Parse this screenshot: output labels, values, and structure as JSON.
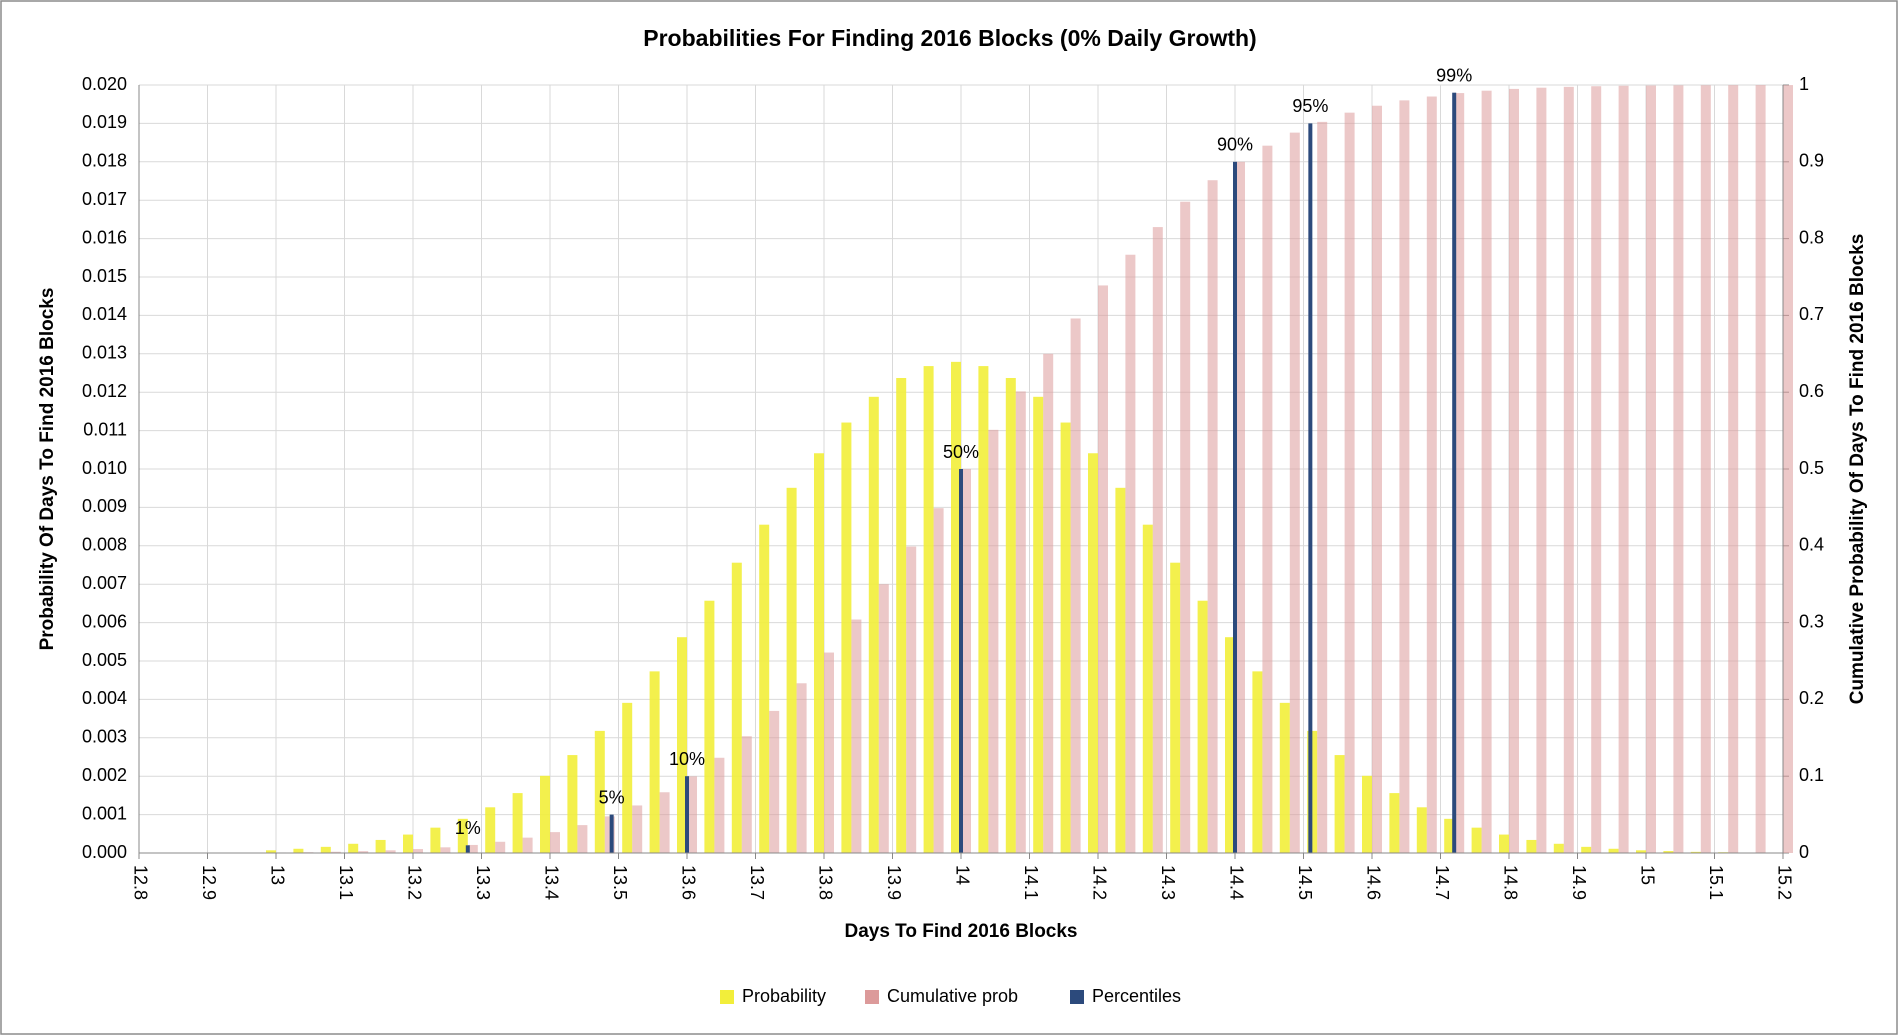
{
  "chart_data": {
    "type": "bar",
    "title": "Probabilities For Finding 2016 Blocks (0% Daily Growth)",
    "x_label": "Days To Find 2016 Blocks",
    "y_label": "Probability Of Days To Find 2016 Blocks",
    "y2_label": "Cumulative Probability Of Days To Find 2016 Blocks",
    "x": [
      13.0,
      13.04,
      13.08,
      13.12,
      13.16,
      13.2,
      13.24,
      13.28,
      13.32,
      13.36,
      13.4,
      13.44,
      13.48,
      13.52,
      13.56,
      13.6,
      13.64,
      13.68,
      13.72,
      13.76,
      13.8,
      13.84,
      13.88,
      13.92,
      13.96,
      14.0,
      14.04,
      14.08,
      14.12,
      14.16,
      14.2,
      14.24,
      14.28,
      14.32,
      14.36,
      14.4,
      14.44,
      14.48,
      14.52,
      14.56,
      14.6,
      14.64,
      14.68,
      14.72,
      14.76,
      14.8,
      14.84,
      14.88,
      14.92,
      14.96,
      15.0,
      15.04,
      15.08,
      15.12,
      15.16,
      15.2
    ],
    "series": [
      {
        "name": "Probability",
        "color": "#f2ee3a",
        "values": [
          7e-05,
          0.00011,
          0.00016,
          0.00024,
          0.00034,
          0.00048,
          0.00066,
          0.00089,
          0.00119,
          0.00156,
          0.00201,
          0.00255,
          0.00318,
          0.00391,
          0.00473,
          0.00562,
          0.00657,
          0.00756,
          0.00855,
          0.00951,
          0.01041,
          0.01121,
          0.01188,
          0.01237,
          0.01268,
          0.01279,
          0.01268,
          0.01237,
          0.01188,
          0.01121,
          0.01041,
          0.00951,
          0.00855,
          0.00756,
          0.00657,
          0.00562,
          0.00473,
          0.00391,
          0.00318,
          0.00255,
          0.00201,
          0.00156,
          0.00119,
          0.00089,
          0.00066,
          0.00048,
          0.00034,
          0.00024,
          0.00016,
          0.00011,
          7e-05,
          5e-05,
          3e-05,
          2e-05,
          1e-05,
          1e-05
        ]
      },
      {
        "name": "Cumulative prob",
        "color": "#dc9a9a",
        "axis": "y2",
        "values": [
          0.0007,
          0.001,
          0.0016,
          0.0024,
          0.0035,
          0.0051,
          0.0074,
          0.0105,
          0.0146,
          0.02,
          0.0272,
          0.0363,
          0.0477,
          0.0619,
          0.0791,
          0.0998,
          0.124,
          0.152,
          0.185,
          0.221,
          0.261,
          0.304,
          0.35,
          0.399,
          0.449,
          0.5,
          0.551,
          0.601,
          0.65,
          0.696,
          0.739,
          0.779,
          0.815,
          0.848,
          0.876,
          0.9,
          0.921,
          0.938,
          0.952,
          0.964,
          0.973,
          0.98,
          0.985,
          0.9895,
          0.9926,
          0.9949,
          0.9965,
          0.9976,
          0.9984,
          0.999,
          0.9993,
          0.9996,
          0.9997,
          0.9998,
          0.9999,
          0.9999
        ]
      },
      {
        "name": "Percentiles",
        "color": "#2c4a7c",
        "axis": "y2",
        "x": [
          13.28,
          13.49,
          13.6,
          14.0,
          14.4,
          14.51,
          14.72
        ],
        "values": [
          0.01,
          0.05,
          0.1,
          0.5,
          0.9,
          0.95,
          0.99
        ],
        "value_labels": [
          "1%",
          "5%",
          "10%",
          "50%",
          "90%",
          "95%",
          "99%"
        ]
      }
    ],
    "xlim": [
      12.8,
      15.2
    ],
    "xticks": [
      12.8,
      12.9,
      13,
      13.1,
      13.2,
      13.3,
      13.4,
      13.5,
      13.6,
      13.7,
      13.8,
      13.9,
      14,
      14.1,
      14.2,
      14.3,
      14.4,
      14.5,
      14.6,
      14.7,
      14.8,
      14.9,
      15,
      15.1,
      15.2
    ],
    "ylim": [
      0,
      0.02
    ],
    "yticks": [
      {
        "value": 0,
        "label": "0.000"
      },
      {
        "value": 0.001,
        "label": "0.001"
      },
      {
        "value": 0.002,
        "label": "0.002"
      },
      {
        "value": 0.003,
        "label": "0.003"
      },
      {
        "value": 0.004,
        "label": "0.004"
      },
      {
        "value": 0.005,
        "label": "0.005"
      },
      {
        "value": 0.006,
        "label": "0.006"
      },
      {
        "value": 0.007,
        "label": "0.007"
      },
      {
        "value": 0.008,
        "label": "0.008"
      },
      {
        "value": 0.009,
        "label": "0.009"
      },
      {
        "value": 0.01,
        "label": "0.010"
      },
      {
        "value": 0.011,
        "label": "0.011"
      },
      {
        "value": 0.012,
        "label": "0.012"
      },
      {
        "value": 0.013,
        "label": "0.013"
      },
      {
        "value": 0.014,
        "label": "0.014"
      },
      {
        "value": 0.015,
        "label": "0.015"
      },
      {
        "value": 0.016,
        "label": "0.016"
      },
      {
        "value": 0.017,
        "label": "0.017"
      },
      {
        "value": 0.018,
        "label": "0.018"
      },
      {
        "value": 0.019,
        "label": "0.019"
      },
      {
        "value": 0.02,
        "label": "0.020"
      }
    ],
    "y2lim": [
      0,
      1
    ],
    "y2ticks": [
      0,
      0.1,
      0.2,
      0.3,
      0.4,
      0.5,
      0.6,
      0.7,
      0.8,
      0.9,
      1
    ],
    "grid": true,
    "legend": "bottom"
  }
}
